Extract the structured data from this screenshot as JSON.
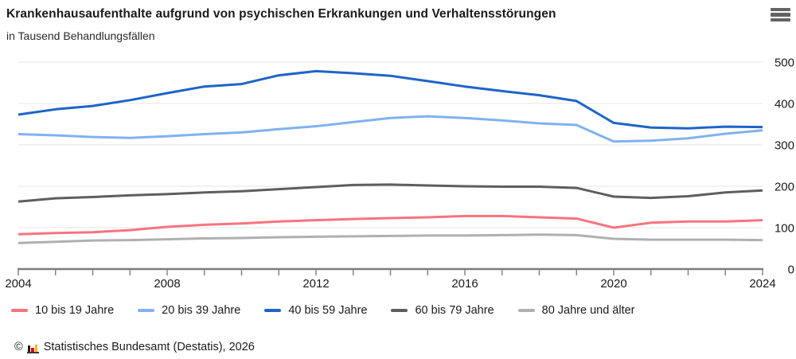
{
  "chart_data": {
    "type": "line",
    "title": "Krankenhausaufenthalte aufgrund von psychischen Erkrankungen und Verhaltensstörungen",
    "subtitle": "in Tausend Behandlungsfällen",
    "x": [
      2004,
      2005,
      2006,
      2007,
      2008,
      2009,
      2010,
      2011,
      2012,
      2013,
      2014,
      2015,
      2016,
      2017,
      2018,
      2019,
      2020,
      2021,
      2022,
      2023,
      2024
    ],
    "series": [
      {
        "name": "10 bis 19 Jahre",
        "color": "#f8737f",
        "values": [
          84,
          87,
          89,
          94,
          102,
          107,
          110,
          115,
          118,
          121,
          123,
          125,
          128,
          128,
          125,
          122,
          100,
          112,
          115,
          115,
          118
        ]
      },
      {
        "name": "20 bis 39 Jahre",
        "color": "#7fb2f0",
        "values": [
          326,
          323,
          319,
          317,
          321,
          326,
          330,
          338,
          345,
          355,
          365,
          369,
          365,
          359,
          352,
          348,
          308,
          310,
          316,
          327,
          335
        ]
      },
      {
        "name": "40 bis 59 Jahre",
        "color": "#1e64c8",
        "values": [
          373,
          386,
          394,
          408,
          425,
          441,
          447,
          468,
          478,
          473,
          467,
          454,
          441,
          430,
          420,
          406,
          353,
          342,
          340,
          344,
          343
        ]
      },
      {
        "name": "60 bis 79 Jahre",
        "color": "#5e5e5e",
        "values": [
          163,
          171,
          174,
          178,
          181,
          185,
          188,
          193,
          198,
          203,
          204,
          202,
          200,
          199,
          199,
          196,
          175,
          172,
          176,
          185,
          190
        ]
      },
      {
        "name": "80 Jahre und älter",
        "color": "#b0b0b0",
        "values": [
          63,
          66,
          69,
          70,
          72,
          74,
          75,
          77,
          78,
          79,
          80,
          81,
          81,
          82,
          83,
          82,
          73,
          71,
          71,
          71,
          70
        ]
      }
    ],
    "xticks_labeled": [
      2004,
      2008,
      2012,
      2016,
      2020,
      2024
    ],
    "yticks": [
      0,
      100,
      200,
      300,
      400,
      500
    ],
    "ylim": [
      0,
      500
    ],
    "grid": "horizontal-light",
    "legend_position": "bottom-left",
    "y_axis_side": "right"
  },
  "menu": {
    "icon": "hamburger-icon"
  },
  "footer": {
    "copyright_symbol": "©",
    "source": "Statistisches Bundesamt (Destatis), 2026",
    "logo_colors": [
      "#1a1a1a",
      "#e1001a",
      "#f0bc00"
    ]
  }
}
